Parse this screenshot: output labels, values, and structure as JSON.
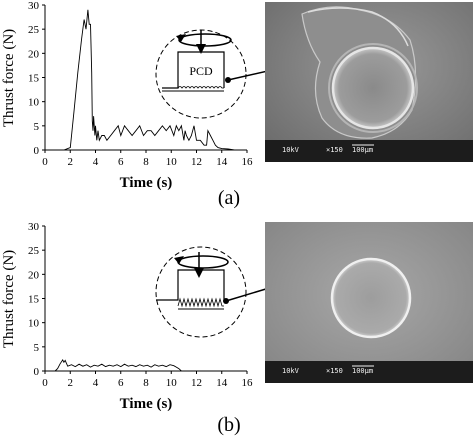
{
  "chart_data": [
    {
      "type": "line",
      "panel_label": "(a)",
      "xlabel": "Time (s)",
      "ylabel": "Thrust force (N)",
      "xlim": [
        0,
        16
      ],
      "ylim": [
        0,
        30
      ],
      "x_ticks": [
        "0",
        "2",
        "4",
        "6",
        "8",
        "10",
        "12",
        "14",
        "16"
      ],
      "y_ticks": [
        "0",
        "5",
        "10",
        "15",
        "20",
        "25",
        "30"
      ],
      "grid": false,
      "x": [
        0,
        1.5,
        2.0,
        2.3,
        2.6,
        2.9,
        3.1,
        3.25,
        3.4,
        3.5,
        3.6,
        3.7,
        3.75,
        3.8,
        3.85,
        3.95,
        4.0,
        4.1,
        4.2,
        4.3,
        4.5,
        4.7,
        4.9,
        5.2,
        5.5,
        5.8,
        6.0,
        6.3,
        6.6,
        6.9,
        7.2,
        7.5,
        7.8,
        8.1,
        8.4,
        8.7,
        9.0,
        9.3,
        9.6,
        9.9,
        10.2,
        10.4,
        10.6,
        10.8,
        11.0,
        11.1,
        11.2,
        11.4,
        11.6,
        11.8,
        12.0,
        12.3,
        12.6,
        12.8,
        12.9,
        13.1,
        13.3,
        13.5,
        13.7,
        14.0,
        14.5,
        15.0
      ],
      "y": [
        0,
        0,
        0.5,
        8,
        16,
        23,
        27,
        25,
        29,
        26,
        26,
        16,
        6,
        4,
        7,
        3,
        5,
        2,
        4,
        2,
        3,
        3,
        2,
        3,
        4,
        5,
        3,
        5,
        4,
        3,
        4,
        5,
        3,
        4,
        4,
        3,
        4,
        5,
        4,
        5,
        3,
        5,
        4,
        5,
        2,
        4,
        3,
        2,
        3,
        5,
        2,
        2,
        1,
        1,
        4,
        3,
        2,
        1,
        0.5,
        0.3,
        0.2,
        0
      ]
    },
    {
      "type": "line",
      "panel_label": "(b)",
      "xlabel": "Time (s)",
      "ylabel": "Thrust force (N)",
      "xlim": [
        0,
        16
      ],
      "ylim": [
        0,
        30
      ],
      "x_ticks": [
        "0",
        "2",
        "4",
        "6",
        "8",
        "10",
        "12",
        "14",
        "16"
      ],
      "y_ticks": [
        "0",
        "5",
        "10",
        "15",
        "20",
        "25",
        "30"
      ],
      "grid": false,
      "x": [
        0,
        0.8,
        1.0,
        1.2,
        1.4,
        1.5,
        1.6,
        1.8,
        2.1,
        2.4,
        2.7,
        3.0,
        3.3,
        3.6,
        3.9,
        4.2,
        4.5,
        4.8,
        5.1,
        5.4,
        5.7,
        6.0,
        6.3,
        6.6,
        6.9,
        7.2,
        7.5,
        7.8,
        8.1,
        8.4,
        8.7,
        9.0,
        9.3,
        9.6,
        9.9,
        10.2,
        10.4,
        10.6,
        10.8,
        11.5,
        12.0
      ],
      "y": [
        0,
        0,
        0.5,
        1.5,
        2.3,
        1.8,
        2.2,
        1.0,
        1.3,
        0.9,
        1.4,
        1.0,
        1.3,
        0.8,
        1.2,
        1.0,
        1.4,
        0.9,
        1.2,
        1.0,
        1.3,
        0.9,
        1.4,
        1.0,
        1.2,
        0.9,
        1.3,
        1.0,
        1.2,
        0.8,
        1.3,
        1.0,
        1.2,
        0.9,
        1.3,
        1.1,
        0.8,
        0.5,
        0,
        0,
        0
      ]
    }
  ],
  "inset_a": {
    "tool_label": "PCD"
  },
  "sem": {
    "accel_voltage": "10kV",
    "magnification": "×150",
    "scale_bar": "100μm"
  }
}
